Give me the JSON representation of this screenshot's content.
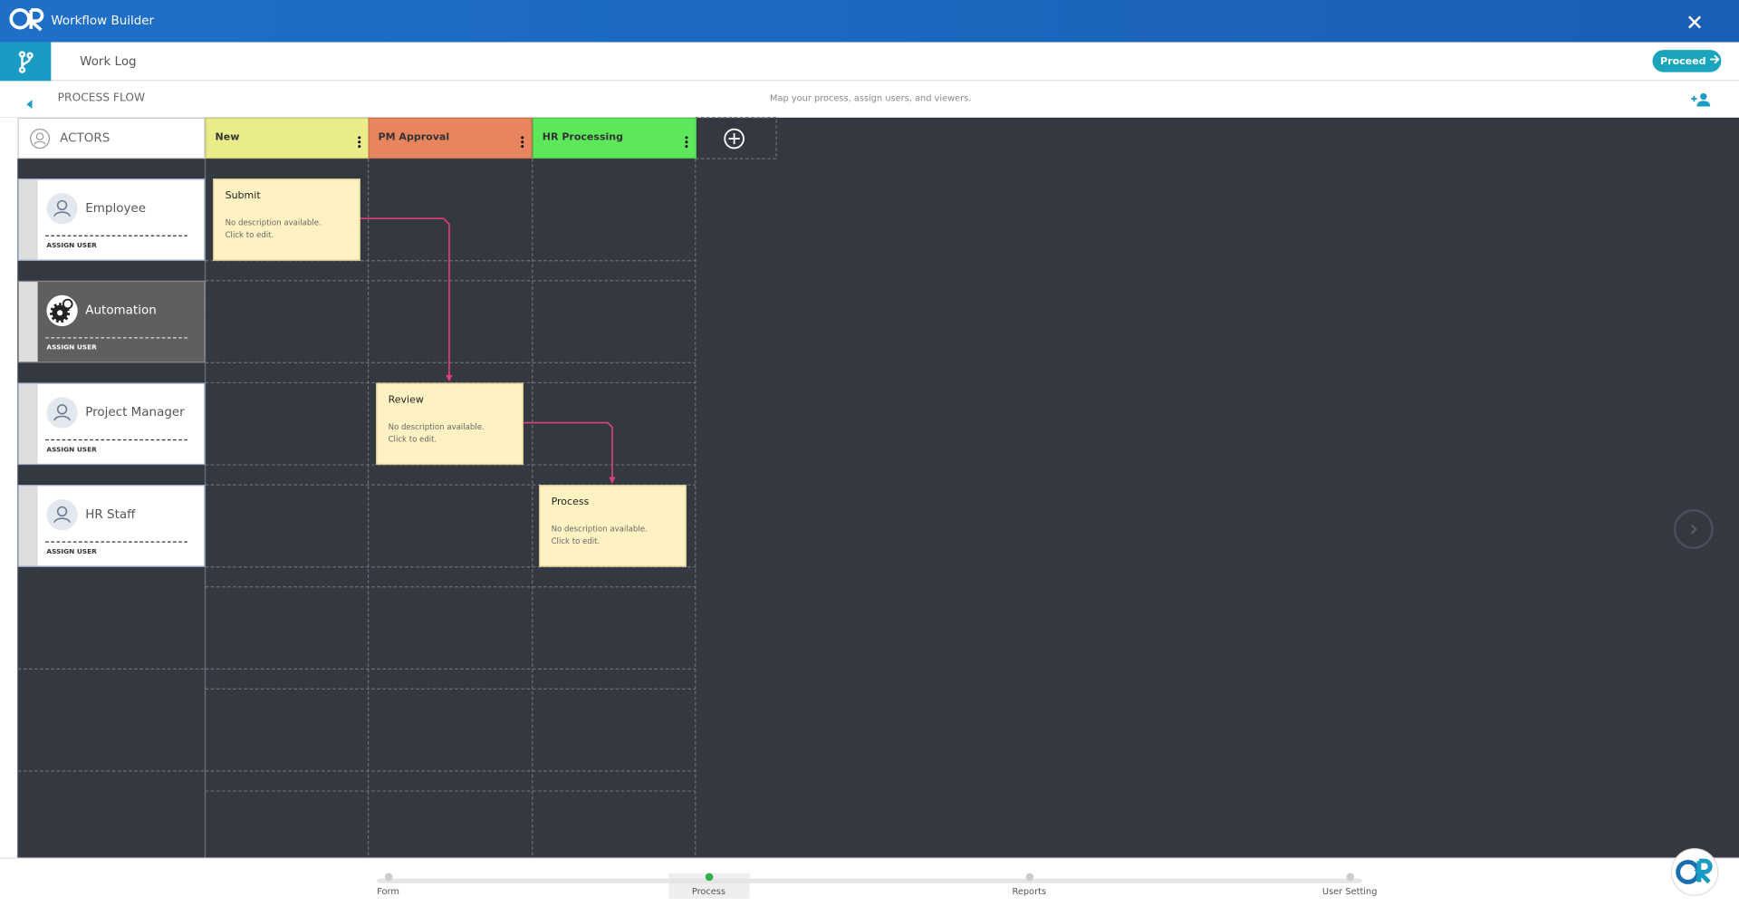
{
  "header": {
    "title": "Workflow Builder"
  },
  "toolbar": {
    "tab": "Work Log",
    "button": "Proceed"
  },
  "section": {
    "title": "PROCESS FLOW",
    "subtitle": "Map your process, assign users, and viewers."
  },
  "board": {
    "actors_label": "ACTORS",
    "columns": [
      {
        "name": "New",
        "color": "#eaec8a"
      },
      {
        "name": "PM Approval",
        "color": "#e8845e"
      },
      {
        "name": "HR Processing",
        "color": "#5ce85a"
      }
    ],
    "actors": [
      {
        "name": "Employee",
        "action": "ASSIGN USER"
      },
      {
        "name": "Automation",
        "action": "ASSIGN USER"
      },
      {
        "name": "Project Manager",
        "action": "ASSIGN USER"
      },
      {
        "name": "HR Staff",
        "action": "ASSIGN USER"
      }
    ],
    "cards": [
      {
        "title": "Submit",
        "description": [
          "No description available.",
          "Click to edit."
        ]
      },
      {
        "title": "Review",
        "description": [
          "No description available.",
          "Click to edit."
        ]
      },
      {
        "title": "Process",
        "description": [
          "No description available.",
          "Click to edit."
        ]
      }
    ]
  },
  "footer": {
    "steps": [
      "Form",
      "Process",
      "Reports",
      "User Setting"
    ],
    "active": 1
  }
}
